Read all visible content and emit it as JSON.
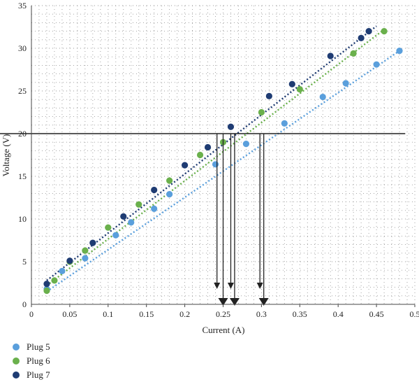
{
  "chart_data": {
    "type": "scatter",
    "xlabel": "Current (A)",
    "ylabel": "Voltage (V)",
    "xlim": [
      0,
      0.5
    ],
    "ylim": [
      0,
      35
    ],
    "xticks": [
      0,
      0.05,
      0.1,
      0.15,
      0.2,
      0.25,
      0.3,
      0.35,
      0.4,
      0.45,
      0.5
    ],
    "xtick_labels": [
      "0",
      "0.05",
      "0.1",
      "0.15",
      "0.2",
      "0.25",
      "0.3",
      "0.35",
      "0.4",
      "0.45",
      "0.5"
    ],
    "yticks": [
      0,
      5,
      10,
      15,
      20,
      25,
      30,
      35
    ],
    "ytick_labels": [
      "0",
      "5",
      "10",
      "15",
      "20",
      "25",
      "30",
      "35"
    ],
    "grid": "dotted",
    "legend_position": "bottom-left",
    "reference_line_y": 20,
    "arrows_x": [
      0.242,
      0.25,
      0.26,
      0.265,
      0.298,
      0.303
    ],
    "series": [
      {
        "name": "Plug 5",
        "color": "#5a9fdc",
        "trend": [
          [
            0.02,
            1.5
          ],
          [
            0.48,
            29.7
          ]
        ],
        "points": [
          [
            0.02,
            1.8
          ],
          [
            0.04,
            3.9
          ],
          [
            0.07,
            5.4
          ],
          [
            0.11,
            8.1
          ],
          [
            0.13,
            9.6
          ],
          [
            0.16,
            11.2
          ],
          [
            0.18,
            12.9
          ],
          [
            0.24,
            16.4
          ],
          [
            0.28,
            18.8
          ],
          [
            0.33,
            21.2
          ],
          [
            0.38,
            24.3
          ],
          [
            0.41,
            25.9
          ],
          [
            0.45,
            28.1
          ],
          [
            0.48,
            29.7
          ]
        ]
      },
      {
        "name": "Plug 6",
        "color": "#6ab04c",
        "trend": [
          [
            0.02,
            2.2
          ],
          [
            0.46,
            32.2
          ]
        ],
        "points": [
          [
            0.02,
            1.6
          ],
          [
            0.03,
            2.8
          ],
          [
            0.05,
            5.0
          ],
          [
            0.07,
            6.3
          ],
          [
            0.1,
            9.0
          ],
          [
            0.14,
            11.7
          ],
          [
            0.18,
            14.5
          ],
          [
            0.22,
            17.5
          ],
          [
            0.25,
            19.0
          ],
          [
            0.3,
            22.5
          ],
          [
            0.35,
            25.2
          ],
          [
            0.42,
            29.4
          ],
          [
            0.46,
            32.0
          ]
        ]
      },
      {
        "name": "Plug 7",
        "color": "#1f3c73",
        "trend": [
          [
            0.02,
            2.8
          ],
          [
            0.45,
            32.6
          ]
        ],
        "points": [
          [
            0.02,
            2.4
          ],
          [
            0.05,
            5.1
          ],
          [
            0.08,
            7.2
          ],
          [
            0.12,
            10.3
          ],
          [
            0.16,
            13.4
          ],
          [
            0.2,
            16.3
          ],
          [
            0.23,
            18.4
          ],
          [
            0.26,
            20.8
          ],
          [
            0.31,
            24.4
          ],
          [
            0.34,
            25.8
          ],
          [
            0.39,
            29.1
          ],
          [
            0.43,
            31.2
          ],
          [
            0.44,
            32.0
          ]
        ]
      }
    ]
  }
}
